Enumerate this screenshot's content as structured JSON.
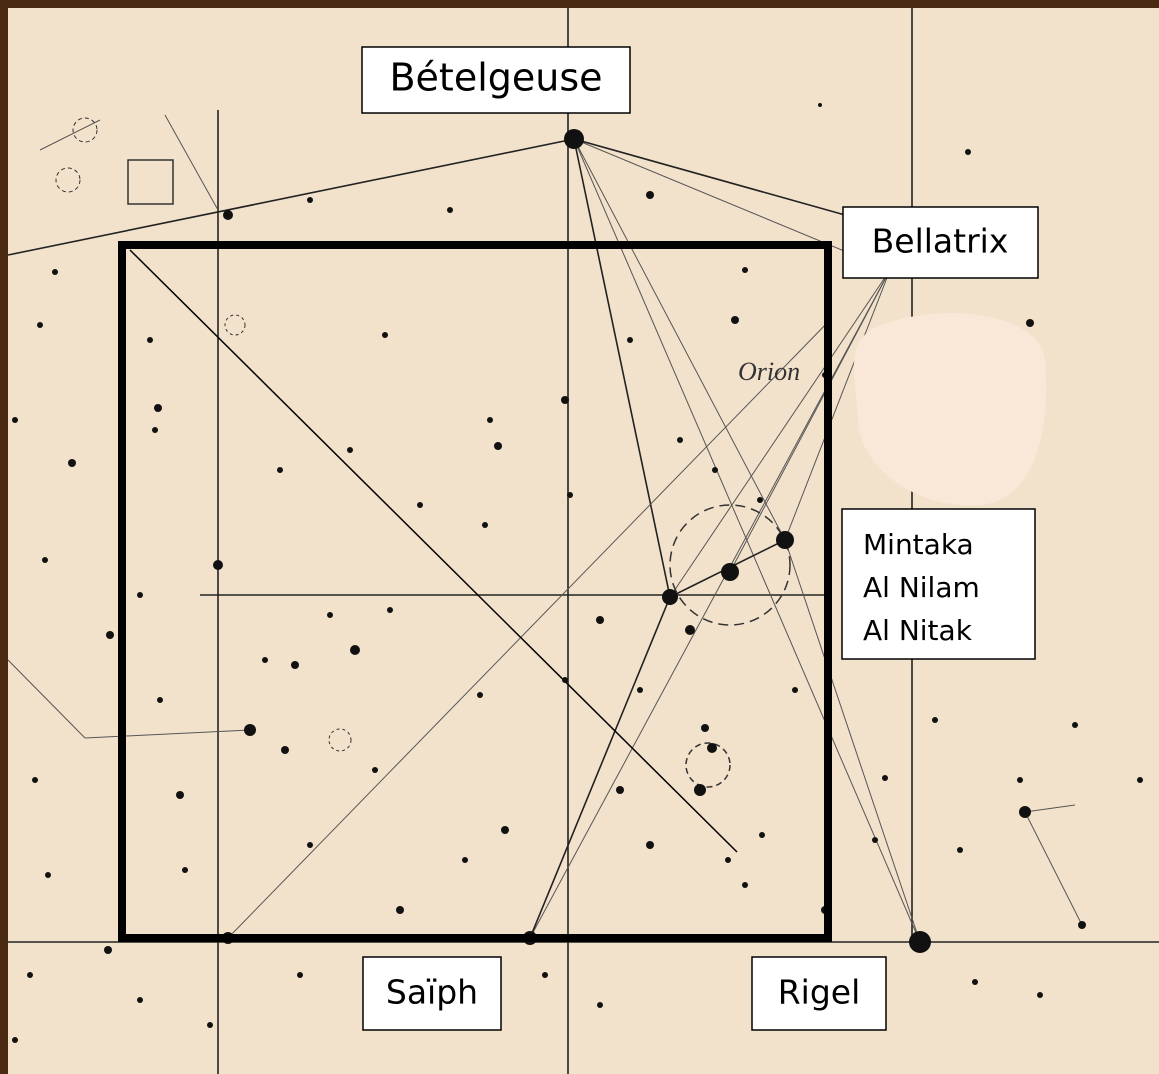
{
  "labels": {
    "betelgeuse": "Bételgeuse",
    "bellatrix": "Bellatrix",
    "belt": [
      "Mintaka",
      "Al Nilam",
      "Al Nitak"
    ],
    "saiph": "Saïph",
    "rigel": "Rigel"
  },
  "constellation": "Orion"
}
